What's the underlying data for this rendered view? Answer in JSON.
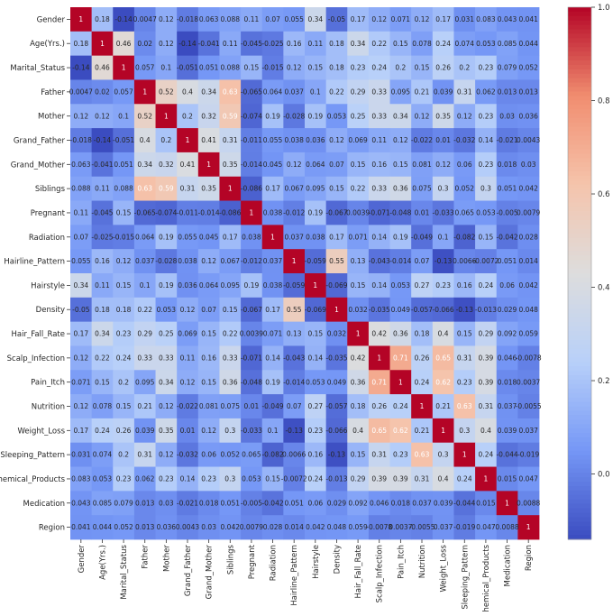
{
  "chart_data": {
    "type": "heatmap",
    "title": "",
    "xlabel": "",
    "ylabel": "",
    "labels": [
      "Gender",
      "Age(Yrs.)",
      "Marital_Status",
      "Father",
      "Mother",
      "Grand_Father",
      "Grand_Mother",
      "Siblings",
      "Pregnant",
      "Radiation",
      "Hairline_Pattern",
      "Hairstyle",
      "Density",
      "Hair_Fall_Rate",
      "Scalp_Infection",
      "Pain_Itch",
      "Nutrition",
      "Weight_Loss",
      "Sleeping_Pattern",
      "Chemical_Products",
      "Medication",
      "Region"
    ],
    "matrix": [
      [
        "1",
        "0.18",
        "-0.14",
        "0.0047",
        "0.12",
        "-0.018",
        "0.063",
        "0.088",
        "0.11",
        "0.07",
        "0.055",
        "0.34",
        "-0.05",
        "0.17",
        "0.12",
        "0.071",
        "0.12",
        "0.17",
        "0.031",
        "0.083",
        "0.043",
        "0.041"
      ],
      [
        "0.18",
        "1",
        "0.46",
        "0.02",
        "0.12",
        "-0.14",
        "-0.041",
        "0.11",
        "-0.045",
        "-0.025",
        "0.16",
        "0.11",
        "0.18",
        "0.34",
        "0.22",
        "0.15",
        "0.078",
        "0.24",
        "0.074",
        "0.053",
        "0.085",
        "0.044"
      ],
      [
        "-0.14",
        "0.46",
        "1",
        "0.057",
        "0.1",
        "-0.051",
        "0.051",
        "0.088",
        "0.15",
        "-0.015",
        "0.12",
        "0.15",
        "0.18",
        "0.23",
        "0.24",
        "0.2",
        "0.15",
        "0.26",
        "0.2",
        "0.23",
        "0.079",
        "0.052"
      ],
      [
        "0.0047",
        "0.02",
        "0.057",
        "1",
        "0.52",
        "0.4",
        "0.34",
        "0.63",
        "-0.065",
        "0.064",
        "0.037",
        "0.1",
        "0.22",
        "0.29",
        "0.33",
        "0.095",
        "0.21",
        "0.039",
        "0.31",
        "0.062",
        "0.013",
        "0.013"
      ],
      [
        "0.12",
        "0.12",
        "0.1",
        "0.52",
        "1",
        "0.2",
        "0.32",
        "0.59",
        "-0.074",
        "0.19",
        "-0.028",
        "0.19",
        "0.053",
        "0.25",
        "0.33",
        "0.34",
        "0.12",
        "0.35",
        "0.12",
        "0.23",
        "0.03",
        "0.036"
      ],
      [
        "-0.018",
        "-0.14",
        "-0.051",
        "0.4",
        "0.2",
        "1",
        "0.41",
        "0.31",
        "-0.011",
        "0.055",
        "0.038",
        "0.036",
        "0.12",
        "0.069",
        "0.11",
        "0.12",
        "-0.022",
        "0.01",
        "-0.032",
        "0.14",
        "-0.021",
        "0.0043"
      ],
      [
        "0.063",
        "-0.041",
        "0.051",
        "0.34",
        "0.32",
        "0.41",
        "1",
        "0.35",
        "-0.014",
        "0.045",
        "0.12",
        "0.064",
        "0.07",
        "0.15",
        "0.16",
        "0.15",
        "0.081",
        "0.12",
        "0.06",
        "0.23",
        "0.018",
        "0.03"
      ],
      [
        "0.088",
        "0.11",
        "0.088",
        "0.63",
        "0.59",
        "0.31",
        "0.35",
        "1",
        "-0.086",
        "0.17",
        "0.067",
        "0.095",
        "0.15",
        "0.22",
        "0.33",
        "0.36",
        "0.075",
        "0.3",
        "0.052",
        "0.3",
        "0.051",
        "0.042"
      ],
      [
        "0.11",
        "-0.045",
        "0.15",
        "-0.065",
        "-0.074",
        "-0.011",
        "-0.014",
        "-0.086",
        "1",
        "0.038",
        "-0.012",
        "0.19",
        "-0.067",
        "0.0039",
        "-0.071",
        "-0.048",
        "0.01",
        "-0.033",
        "0.065",
        "0.053",
        "-0.005",
        "0.0079"
      ],
      [
        "0.07",
        "-0.025",
        "-0.015",
        "0.064",
        "0.19",
        "0.055",
        "0.045",
        "0.17",
        "0.038",
        "1",
        "0.037",
        "0.038",
        "0.17",
        "0.071",
        "0.14",
        "0.19",
        "-0.049",
        "0.1",
        "-0.082",
        "0.15",
        "-0.042",
        "0.028"
      ],
      [
        "0.055",
        "0.16",
        "0.12",
        "0.037",
        "-0.028",
        "0.038",
        "0.12",
        "0.067",
        "-0.012",
        "0.037",
        "1",
        "-0.059",
        "0.55",
        "0.13",
        "-0.043",
        "-0.014",
        "0.07",
        "-0.13",
        "0.0066",
        "-0.0072",
        "0.051",
        "0.014"
      ],
      [
        "0.34",
        "0.11",
        "0.15",
        "0.1",
        "0.19",
        "0.036",
        "0.064",
        "0.095",
        "0.19",
        "0.038",
        "-0.059",
        "1",
        "-0.069",
        "0.15",
        "0.14",
        "0.053",
        "0.27",
        "0.23",
        "0.16",
        "0.24",
        "0.06",
        "0.042"
      ],
      [
        "-0.05",
        "0.18",
        "0.18",
        "0.22",
        "0.053",
        "0.12",
        "0.07",
        "0.15",
        "-0.067",
        "0.17",
        "0.55",
        "-0.069",
        "1",
        "0.032",
        "-0.035",
        "0.049",
        "-0.057",
        "-0.066",
        "-0.13",
        "-0.013",
        "0.029",
        "0.048"
      ],
      [
        "0.17",
        "0.34",
        "0.23",
        "0.29",
        "0.25",
        "0.069",
        "0.15",
        "0.22",
        "0.0039",
        "0.071",
        "0.13",
        "0.15",
        "0.032",
        "1",
        "0.42",
        "0.36",
        "0.18",
        "0.4",
        "0.15",
        "0.29",
        "0.092",
        "0.059"
      ],
      [
        "0.12",
        "0.22",
        "0.24",
        "0.33",
        "0.33",
        "0.11",
        "0.16",
        "0.33",
        "-0.071",
        "0.14",
        "-0.043",
        "0.14",
        "-0.035",
        "0.42",
        "1",
        "0.71",
        "0.26",
        "0.65",
        "0.31",
        "0.39",
        "0.046",
        "-0.0078"
      ],
      [
        "0.071",
        "0.15",
        "0.2",
        "0.095",
        "0.34",
        "0.12",
        "0.15",
        "0.36",
        "-0.048",
        "0.19",
        "-0.014",
        "0.053",
        "0.049",
        "0.36",
        "0.71",
        "1",
        "0.24",
        "0.62",
        "0.23",
        "0.39",
        "0.018",
        "0.0037"
      ],
      [
        "0.12",
        "0.078",
        "0.15",
        "0.21",
        "0.12",
        "-0.022",
        "0.081",
        "0.075",
        "0.01",
        "-0.049",
        "0.07",
        "0.27",
        "-0.057",
        "0.18",
        "0.26",
        "0.24",
        "1",
        "0.21",
        "0.63",
        "0.31",
        "0.037",
        "-0.0055"
      ],
      [
        "0.17",
        "0.24",
        "0.26",
        "0.039",
        "0.35",
        "0.01",
        "0.12",
        "0.3",
        "-0.033",
        "0.1",
        "-0.13",
        "0.23",
        "-0.066",
        "0.4",
        "0.65",
        "0.62",
        "0.21",
        "1",
        "0.3",
        "0.4",
        "0.039",
        "0.037"
      ],
      [
        "0.031",
        "0.074",
        "0.2",
        "0.31",
        "0.12",
        "-0.032",
        "0.06",
        "0.052",
        "0.065",
        "-0.082",
        "0.0066",
        "0.16",
        "-0.13",
        "0.15",
        "0.31",
        "0.23",
        "0.63",
        "0.3",
        "1",
        "0.24",
        "-0.044",
        "-0.019"
      ],
      [
        "0.083",
        "0.053",
        "0.23",
        "0.062",
        "0.23",
        "0.14",
        "0.23",
        "0.3",
        "0.053",
        "0.15",
        "-0.0072",
        "0.24",
        "-0.013",
        "0.29",
        "0.39",
        "0.39",
        "0.31",
        "0.4",
        "0.24",
        "1",
        "0.015",
        "0.047"
      ],
      [
        "0.043",
        "0.085",
        "0.079",
        "0.013",
        "0.03",
        "-0.021",
        "0.018",
        "0.051",
        "-0.005",
        "-0.042",
        "0.051",
        "0.06",
        "0.029",
        "0.092",
        "0.046",
        "0.018",
        "0.037",
        "0.039",
        "-0.044",
        "0.015",
        "1",
        "0.0088"
      ],
      [
        "0.041",
        "0.044",
        "0.052",
        "0.013",
        "0.036",
        "0.0043",
        "0.03",
        "0.042",
        "0.0079",
        "0.028",
        "0.014",
        "0.042",
        "0.048",
        "0.059",
        "-0.0078",
        "0.0037",
        "-0.0055",
        "0.037",
        "-0.019",
        "0.047",
        "0.0088",
        "1"
      ]
    ],
    "value_range": [
      -0.14,
      1.0
    ],
    "colormap": "coolwarm",
    "colormap_stops": [
      "#3b4cc0",
      "#7597f6",
      "#b8d0f9",
      "#dddddd",
      "#f5c4ac",
      "#f18d6f",
      "#b40426"
    ],
    "colorbar_ticks": [
      "1.0",
      "0.8",
      "0.6",
      "0.4",
      "0.2",
      "0.0"
    ],
    "legend": "colorbar-right",
    "grid": false
  }
}
